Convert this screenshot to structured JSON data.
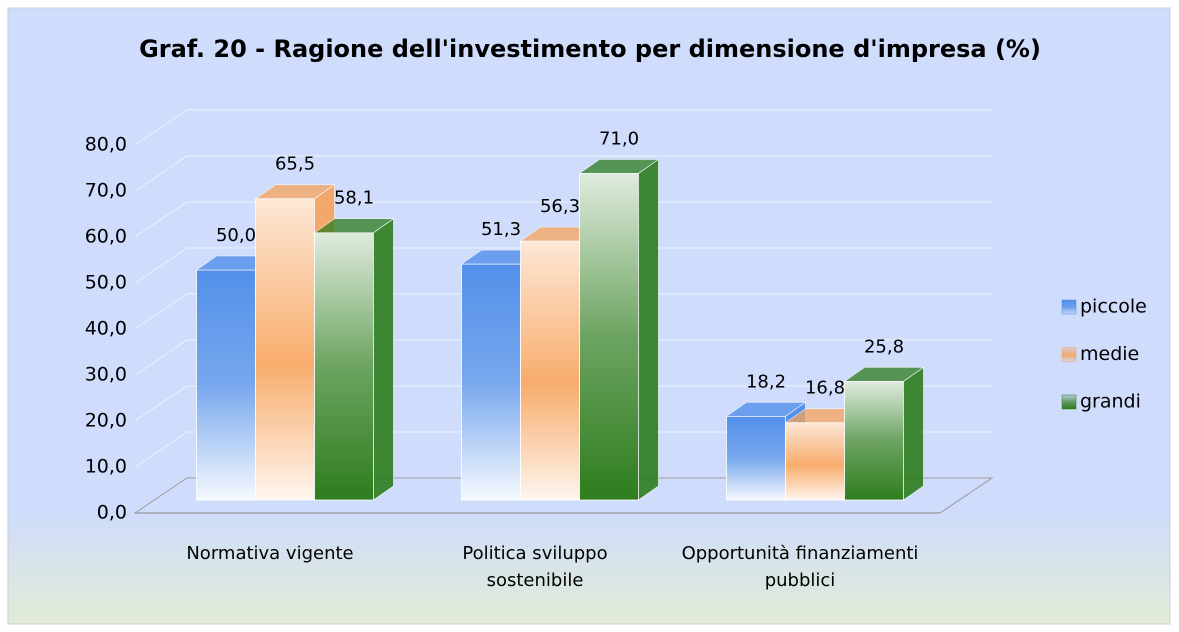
{
  "chart_data": {
    "type": "bar3d",
    "title": "Graf. 20 - Ragione dell'investimento per dimensione d'impresa (%)",
    "categories": [
      "Normativa vigente",
      "Politica sviluppo sostenibile",
      "Opportunità finanziamenti pubblici"
    ],
    "series": [
      {
        "name": "piccole",
        "color": "#4a8ae8",
        "values": [
          50.0,
          51.3,
          18.2
        ],
        "value_labels": [
          "50,0",
          "51,3",
          "18,2"
        ]
      },
      {
        "name": "medie",
        "color": "#f7a35c",
        "values": [
          65.5,
          56.3,
          16.8
        ],
        "value_labels": [
          "65,5",
          "56,3",
          "16,8"
        ]
      },
      {
        "name": "grandi",
        "color": "#2e7d1e",
        "values": [
          58.1,
          71.0,
          25.8
        ],
        "value_labels": [
          "58,1",
          "71,0",
          "25,8"
        ]
      }
    ],
    "ylim": [
      0,
      80
    ],
    "yticks": [
      {
        "value": 0,
        "label": "0,0"
      },
      {
        "value": 10,
        "label": "10,0"
      },
      {
        "value": 20,
        "label": "20,0"
      },
      {
        "value": 30,
        "label": "30,0"
      },
      {
        "value": 40,
        "label": "40,0"
      },
      {
        "value": 50,
        "label": "50,0"
      },
      {
        "value": 60,
        "label": "60,0"
      },
      {
        "value": 70,
        "label": "70,0"
      },
      {
        "value": 80,
        "label": "80,0"
      }
    ],
    "grid": true,
    "legend": "right"
  }
}
